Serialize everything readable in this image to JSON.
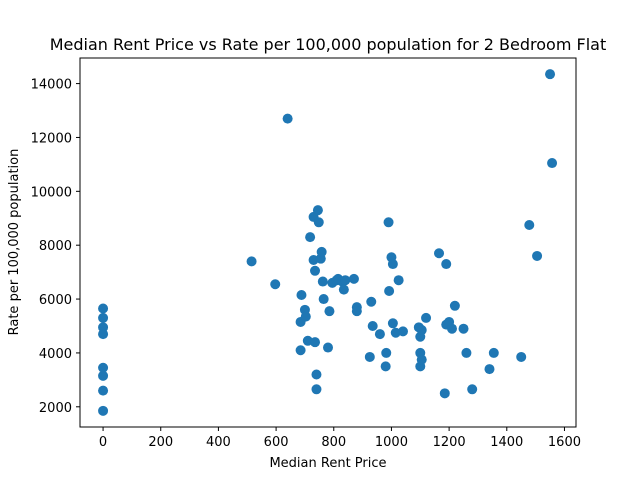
{
  "chart_data": {
    "type": "scatter",
    "title": "Median Rent Price vs Rate per 100,000 population for 2 Bedroom Flat",
    "xlabel": "Median Rent Price",
    "ylabel": "Rate per 100,000 population",
    "xlim": [
      -80,
      1640
    ],
    "ylim": [
      1250,
      14950
    ],
    "xticks": [
      0,
      200,
      400,
      600,
      800,
      1000,
      1200,
      1400,
      1600
    ],
    "yticks": [
      2000,
      4000,
      6000,
      8000,
      10000,
      12000,
      14000
    ],
    "grid": false,
    "marker_color": "#1f77b4",
    "points": [
      [
        0,
        5650
      ],
      [
        0,
        5300
      ],
      [
        0,
        4950
      ],
      [
        0,
        4700
      ],
      [
        0,
        3450
      ],
      [
        0,
        3150
      ],
      [
        0,
        2600
      ],
      [
        0,
        1850
      ],
      [
        515,
        7400
      ],
      [
        597,
        6550
      ],
      [
        640,
        12700
      ],
      [
        688,
        6150
      ],
      [
        685,
        5150
      ],
      [
        685,
        4100
      ],
      [
        700,
        5600
      ],
      [
        703,
        5350
      ],
      [
        710,
        4450
      ],
      [
        718,
        8300
      ],
      [
        730,
        9050
      ],
      [
        730,
        7450
      ],
      [
        735,
        7050
      ],
      [
        735,
        4400
      ],
      [
        740,
        3200
      ],
      [
        740,
        2650
      ],
      [
        745,
        9300
      ],
      [
        748,
        8850
      ],
      [
        755,
        7500
      ],
      [
        758,
        7750
      ],
      [
        762,
        6650
      ],
      [
        765,
        6000
      ],
      [
        780,
        4200
      ],
      [
        785,
        5550
      ],
      [
        795,
        6600
      ],
      [
        810,
        6700
      ],
      [
        815,
        6750
      ],
      [
        830,
        6650
      ],
      [
        835,
        6350
      ],
      [
        840,
        6700
      ],
      [
        870,
        6750
      ],
      [
        880,
        5700
      ],
      [
        880,
        5550
      ],
      [
        925,
        3850
      ],
      [
        930,
        5900
      ],
      [
        935,
        5000
      ],
      [
        960,
        4700
      ],
      [
        980,
        3500
      ],
      [
        982,
        4000
      ],
      [
        990,
        8850
      ],
      [
        992,
        6300
      ],
      [
        1000,
        7550
      ],
      [
        1005,
        7300
      ],
      [
        1005,
        5100
      ],
      [
        1015,
        4750
      ],
      [
        1025,
        6700
      ],
      [
        1040,
        4800
      ],
      [
        1095,
        4950
      ],
      [
        1100,
        4600
      ],
      [
        1100,
        4000
      ],
      [
        1100,
        3500
      ],
      [
        1105,
        3750
      ],
      [
        1105,
        4850
      ],
      [
        1120,
        5300
      ],
      [
        1165,
        7700
      ],
      [
        1185,
        2500
      ],
      [
        1190,
        7300
      ],
      [
        1190,
        5050
      ],
      [
        1200,
        5150
      ],
      [
        1210,
        4900
      ],
      [
        1220,
        5750
      ],
      [
        1250,
        4900
      ],
      [
        1260,
        4000
      ],
      [
        1280,
        2650
      ],
      [
        1340,
        3400
      ],
      [
        1355,
        4000
      ],
      [
        1450,
        3850
      ],
      [
        1478,
        8750
      ],
      [
        1505,
        7600
      ],
      [
        1550,
        14350
      ],
      [
        1557,
        11050
      ]
    ]
  }
}
